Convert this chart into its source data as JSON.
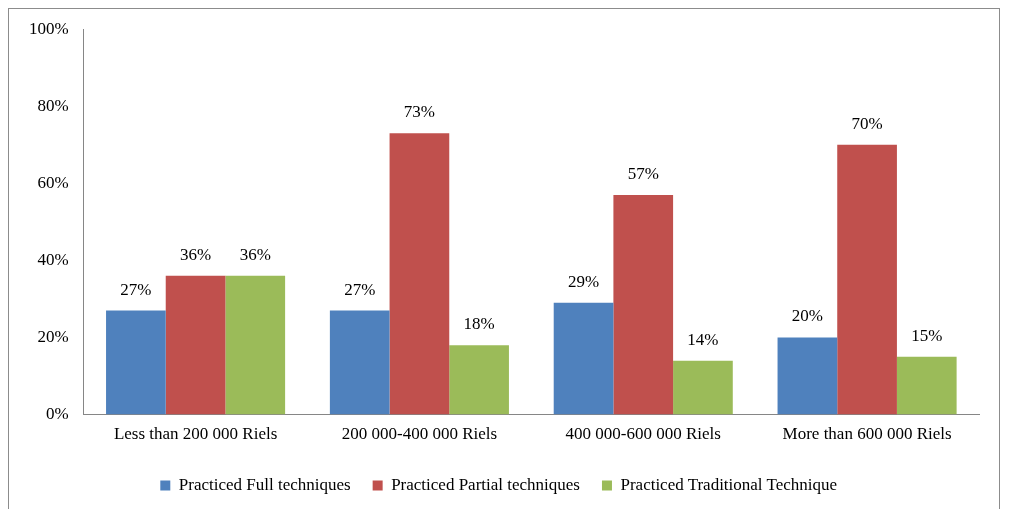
{
  "chart_data": {
    "type": "bar",
    "categories": [
      "Less than 200 000 Riels",
      "200 000-400 000 Riels",
      "400 000-600 000 Riels",
      "More than 600 000 Riels"
    ],
    "series": [
      {
        "name": "Practiced Full techniques",
        "color": "#4f81bd",
        "values": [
          27,
          27,
          29,
          20
        ],
        "value_labels": [
          "27%",
          "27%",
          "29%",
          "20%"
        ]
      },
      {
        "name": "Practiced Partial techniques",
        "color": "#c0504d",
        "values": [
          36,
          73,
          57,
          70
        ],
        "value_labels": [
          "36%",
          "73%",
          "57%",
          "70%"
        ]
      },
      {
        "name": "Practiced Traditional Technique",
        "color": "#9bbb59",
        "values": [
          36,
          18,
          14,
          15
        ],
        "value_labels": [
          "36%",
          "18%",
          "14%",
          "15%"
        ]
      }
    ],
    "ylim": [
      0,
      100
    ],
    "yticks": [
      {
        "value": 0,
        "label": "0%"
      },
      {
        "value": 20,
        "label": "20%"
      },
      {
        "value": 40,
        "label": "40%"
      },
      {
        "value": 60,
        "label": "60%"
      },
      {
        "value": 80,
        "label": "80%"
      },
      {
        "value": 100,
        "label": "100%"
      }
    ],
    "grid": false,
    "legend": "bottom"
  }
}
